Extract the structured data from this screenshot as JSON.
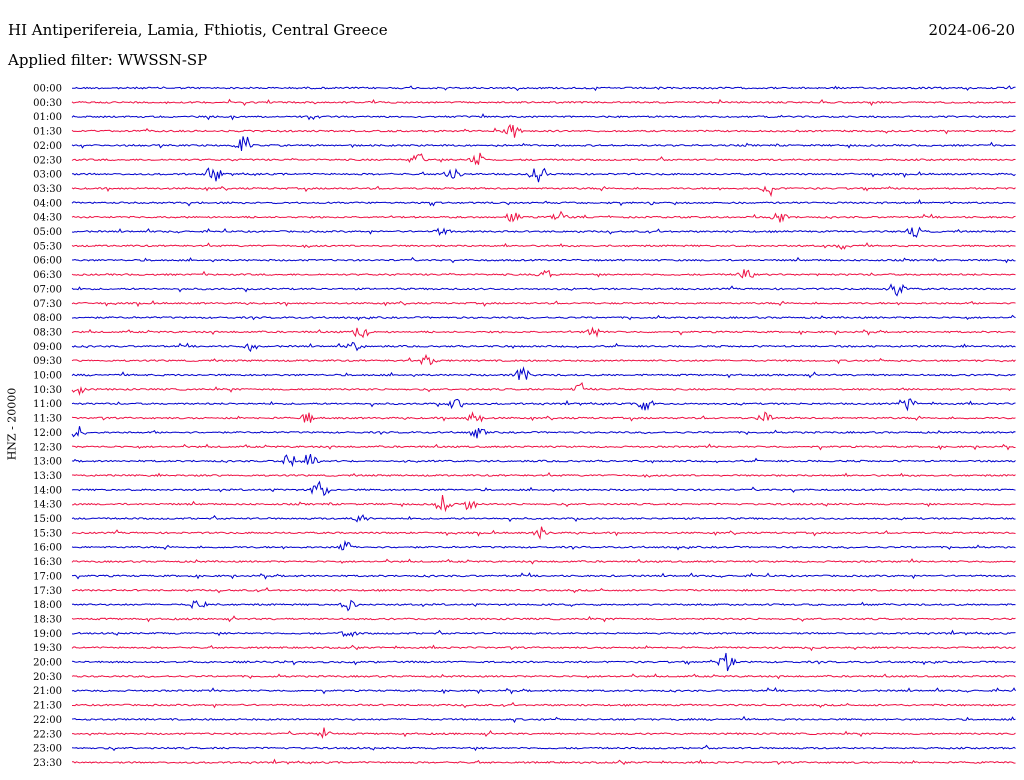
{
  "header": {
    "station": "HI Antiperifereia, Lamia, Fthiotis, Central Greece",
    "date": "2024-06-20",
    "filter": "Applied filter: WWSSN-SP"
  },
  "colors": {
    "even_rows": "#0000cc",
    "odd_rows": "#ee1144"
  },
  "chart_data": {
    "type": "line",
    "title": "",
    "ylabel": "HNZ - 20000",
    "xlabel": "",
    "row_interval_minutes": 30,
    "rows": [
      "00:00",
      "00:30",
      "01:00",
      "01:30",
      "02:00",
      "02:30",
      "03:00",
      "03:30",
      "04:00",
      "04:30",
      "05:00",
      "05:30",
      "06:00",
      "06:30",
      "07:00",
      "07:30",
      "08:00",
      "08:30",
      "09:00",
      "09:30",
      "10:00",
      "10:30",
      "11:00",
      "11:30",
      "12:00",
      "12:30",
      "13:00",
      "13:30",
      "14:00",
      "14:30",
      "15:00",
      "15:30",
      "16:00",
      "16:30",
      "17:00",
      "17:30",
      "18:00",
      "18:30",
      "19:00",
      "19:30",
      "20:00",
      "20:30",
      "21:00",
      "21:30",
      "22:00",
      "22:30",
      "23:00",
      "23:30"
    ],
    "events": [
      {
        "row": 3,
        "minute": 14.0,
        "amplitude": 1.0
      },
      {
        "row": 4,
        "minute": 5.5,
        "amplitude": 2.0
      },
      {
        "row": 5,
        "minute": 11.0,
        "amplitude": 1.1
      },
      {
        "row": 5,
        "minute": 12.9,
        "amplitude": 1.1
      },
      {
        "row": 6,
        "minute": 4.5,
        "amplitude": 1.3
      },
      {
        "row": 6,
        "minute": 12.1,
        "amplitude": 1.1
      },
      {
        "row": 6,
        "minute": 14.8,
        "amplitude": 1.1
      },
      {
        "row": 7,
        "minute": 22.2,
        "amplitude": 1.1
      },
      {
        "row": 9,
        "minute": 14.0,
        "amplitude": 0.9
      },
      {
        "row": 9,
        "minute": 15.5,
        "amplitude": 0.9
      },
      {
        "row": 9,
        "minute": 22.5,
        "amplitude": 0.9
      },
      {
        "row": 10,
        "minute": 11.8,
        "amplitude": 0.8
      },
      {
        "row": 10,
        "minute": 26.8,
        "amplitude": 0.7
      },
      {
        "row": 11,
        "minute": 24.5,
        "amplitude": 0.8
      },
      {
        "row": 13,
        "minute": 15.0,
        "amplitude": 0.9
      },
      {
        "row": 13,
        "minute": 21.4,
        "amplitude": 0.8
      },
      {
        "row": 14,
        "minute": 26.2,
        "amplitude": 1.0
      },
      {
        "row": 17,
        "minute": 9.2,
        "amplitude": 1.0
      },
      {
        "row": 17,
        "minute": 16.6,
        "amplitude": 0.8
      },
      {
        "row": 18,
        "minute": 5.7,
        "amplitude": 0.9
      },
      {
        "row": 18,
        "minute": 9.0,
        "amplitude": 0.8
      },
      {
        "row": 19,
        "minute": 11.3,
        "amplitude": 0.8
      },
      {
        "row": 20,
        "minute": 14.3,
        "amplitude": 1.2
      },
      {
        "row": 21,
        "minute": 0.2,
        "amplitude": 0.8
      },
      {
        "row": 21,
        "minute": 16.2,
        "amplitude": 0.8
      },
      {
        "row": 22,
        "minute": 12.2,
        "amplitude": 0.9
      },
      {
        "row": 22,
        "minute": 18.2,
        "amplitude": 1.0
      },
      {
        "row": 22,
        "minute": 26.6,
        "amplitude": 0.9
      },
      {
        "row": 23,
        "minute": 7.5,
        "amplitude": 0.9
      },
      {
        "row": 23,
        "minute": 12.8,
        "amplitude": 0.9
      },
      {
        "row": 23,
        "minute": 22.0,
        "amplitude": 0.8
      },
      {
        "row": 24,
        "minute": 0.2,
        "amplitude": 0.9
      },
      {
        "row": 24,
        "minute": 12.9,
        "amplitude": 0.9
      },
      {
        "row": 26,
        "minute": 6.9,
        "amplitude": 1.0
      },
      {
        "row": 26,
        "minute": 7.6,
        "amplitude": 0.9
      },
      {
        "row": 28,
        "minute": 7.9,
        "amplitude": 1.4
      },
      {
        "row": 29,
        "minute": 11.8,
        "amplitude": 1.2
      },
      {
        "row": 29,
        "minute": 12.6,
        "amplitude": 0.8
      },
      {
        "row": 30,
        "minute": 9.2,
        "amplitude": 0.8
      },
      {
        "row": 31,
        "minute": 14.9,
        "amplitude": 0.9
      },
      {
        "row": 32,
        "minute": 8.7,
        "amplitude": 0.8
      },
      {
        "row": 36,
        "minute": 4.0,
        "amplitude": 0.8
      },
      {
        "row": 36,
        "minute": 8.8,
        "amplitude": 0.8
      },
      {
        "row": 38,
        "minute": 8.8,
        "amplitude": 0.8
      },
      {
        "row": 40,
        "minute": 20.8,
        "amplitude": 1.3
      },
      {
        "row": 45,
        "minute": 8.0,
        "amplitude": 0.9
      }
    ]
  }
}
